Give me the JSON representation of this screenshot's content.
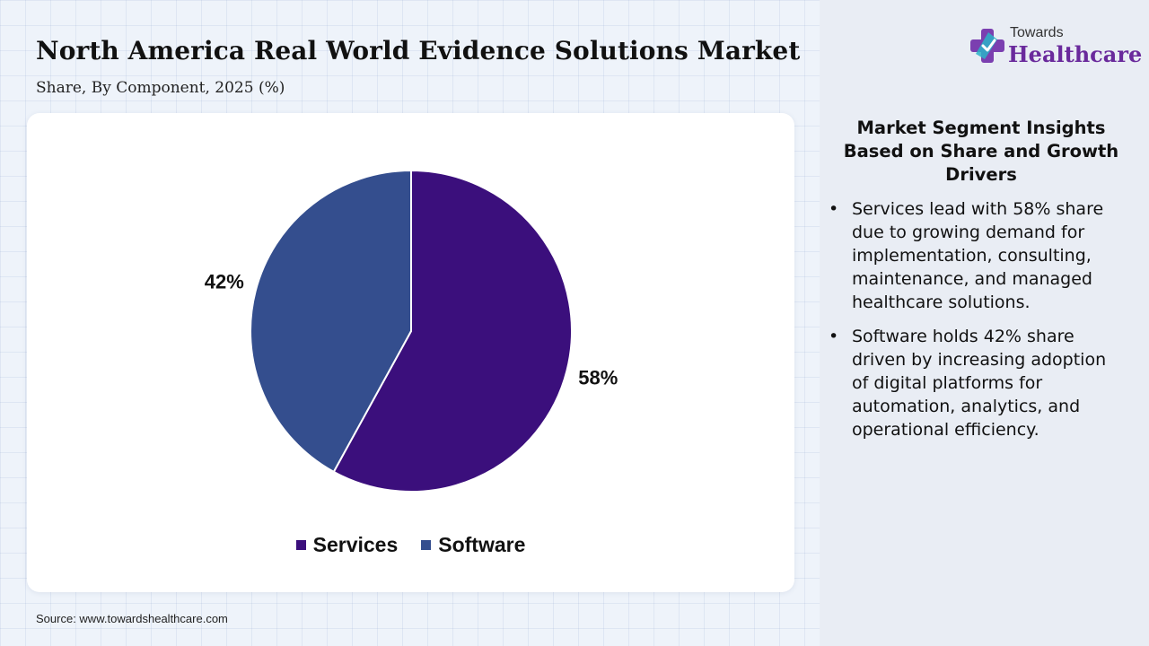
{
  "header": {
    "title": "North America Real World Evidence Solutions Market",
    "subtitle": "Share, By Component, 2025 (%)"
  },
  "chart_data": {
    "type": "pie",
    "categories": [
      "Services",
      "Software"
    ],
    "values": [
      58,
      42
    ],
    "value_labels": [
      "58%",
      "42%"
    ],
    "colors": [
      "#3b0f7c",
      "#344e8e"
    ],
    "legend_position": "bottom"
  },
  "source": "Source: www.towardshealthcare.com",
  "logo": {
    "small_text": "Towards",
    "big_text": "Healthcare"
  },
  "insights": {
    "title": "Market Segment Insights Based on Share and Growth Drivers",
    "bullet": "•",
    "items": [
      "Services lead with 58% share due to growing demand for implementation, consulting, maintenance, and managed healthcare solutions.",
      "Software holds 42% share driven by increasing adoption of digital platforms for automation, analytics, and operational efficiency."
    ]
  }
}
